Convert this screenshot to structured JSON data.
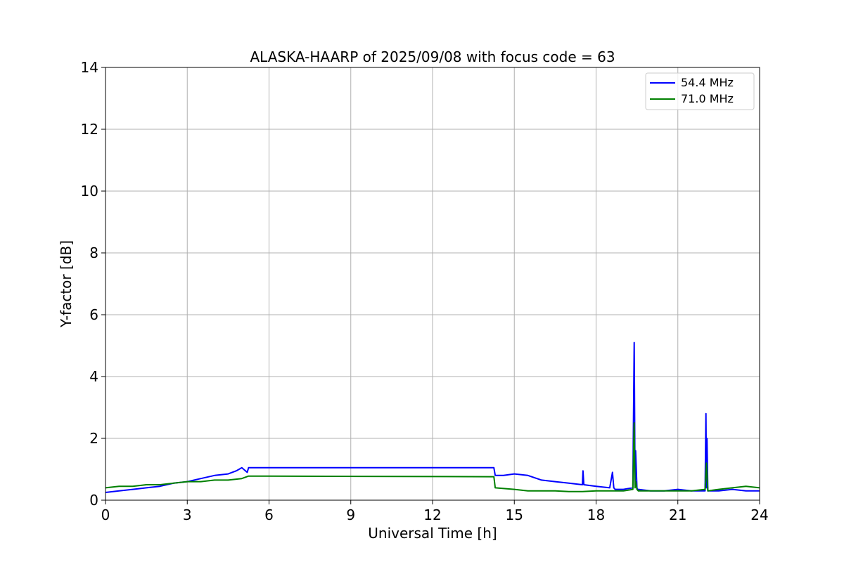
{
  "chart_data": {
    "type": "line",
    "title": "ALASKA-HAARP of 2025/09/08 with focus code = 63",
    "xlabel": "Universal Time [h]",
    "ylabel": "Y-factor [dB]",
    "xlim": [
      0,
      24
    ],
    "ylim": [
      0,
      14
    ],
    "xticks": [
      0,
      3,
      6,
      9,
      12,
      15,
      18,
      21,
      24
    ],
    "yticks": [
      0,
      2,
      4,
      6,
      8,
      10,
      12,
      14
    ],
    "grid": true,
    "legend_position": "top-right",
    "series": [
      {
        "name": "54.4 MHz",
        "color": "#0000ff",
        "x": [
          0,
          0.5,
          1,
          1.5,
          2,
          2.5,
          3,
          3.5,
          4,
          4.5,
          4.8,
          5.0,
          5.2,
          5.25,
          14.25,
          14.3,
          14.6,
          15,
          15.5,
          16,
          16.5,
          17,
          17.5,
          17.52,
          17.55,
          18,
          18.5,
          18.6,
          18.65,
          18.7,
          19,
          19.35,
          19.4,
          19.43,
          19.45,
          19.5,
          19.52,
          19.55,
          20,
          20.5,
          21,
          21.5,
          22,
          22.03,
          22.05,
          22.07,
          22.1,
          22.5,
          23,
          23.5,
          24
        ],
        "y": [
          0.25,
          0.3,
          0.35,
          0.4,
          0.45,
          0.55,
          0.6,
          0.7,
          0.8,
          0.85,
          0.95,
          1.05,
          0.9,
          1.05,
          1.05,
          0.8,
          0.8,
          0.85,
          0.8,
          0.65,
          0.6,
          0.55,
          0.5,
          0.95,
          0.5,
          0.45,
          0.4,
          0.9,
          0.4,
          0.35,
          0.35,
          0.4,
          5.1,
          0.5,
          1.6,
          0.4,
          0.35,
          0.35,
          0.3,
          0.3,
          0.35,
          0.3,
          0.3,
          2.8,
          0.4,
          2.0,
          0.3,
          0.3,
          0.35,
          0.3,
          0.3
        ]
      },
      {
        "name": "71.0 MHz",
        "color": "#008000",
        "x": [
          0,
          0.5,
          1,
          1.5,
          2,
          2.5,
          3,
          3.5,
          4,
          4.5,
          5,
          5.25,
          14.25,
          14.3,
          15,
          15.5,
          16,
          16.5,
          17,
          17.5,
          18,
          18.5,
          19,
          19.35,
          19.4,
          19.43,
          19.45,
          19.5,
          19.55,
          20,
          20.5,
          21,
          21.5,
          22,
          22.05,
          22.1,
          22.5,
          23,
          23.5,
          24
        ],
        "y": [
          0.4,
          0.45,
          0.45,
          0.5,
          0.5,
          0.55,
          0.6,
          0.6,
          0.65,
          0.65,
          0.7,
          0.78,
          0.76,
          0.4,
          0.35,
          0.3,
          0.3,
          0.3,
          0.28,
          0.28,
          0.3,
          0.3,
          0.3,
          0.35,
          2.5,
          0.4,
          0.6,
          0.35,
          0.3,
          0.3,
          0.3,
          0.3,
          0.3,
          0.35,
          1.2,
          0.3,
          0.35,
          0.4,
          0.45,
          0.4
        ]
      }
    ]
  }
}
